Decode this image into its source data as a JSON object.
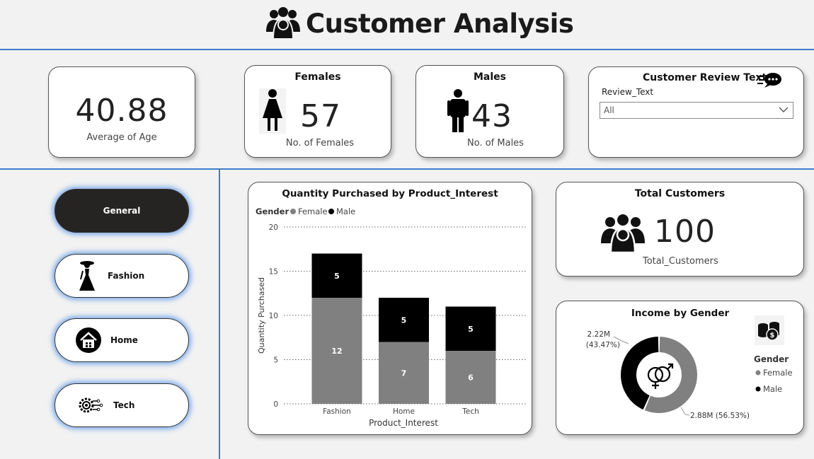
{
  "header": {
    "title": "Customer Analysis",
    "icon": "group-people-icon"
  },
  "kpis": {
    "average_age": {
      "value": "40.88",
      "label": "Average of Age"
    },
    "females": {
      "title": "Females",
      "value": "57",
      "label": "No. of Females",
      "icon": "female-person-icon"
    },
    "males": {
      "title": "Males",
      "value": "43",
      "label": "No. of Males",
      "icon": "male-person-icon"
    },
    "total_customers": {
      "title": "Total Customers",
      "value": "100",
      "label": "Total_Customers",
      "icon": "group-people-icon"
    }
  },
  "review_filter": {
    "title": "Customer Review Text",
    "field_label": "Review_Text",
    "selected": "All",
    "icon": "speech-bubble-icon"
  },
  "nav": {
    "items": [
      {
        "label": "General",
        "icon": "",
        "active": true
      },
      {
        "label": "Fashion",
        "icon": "fashion-woman-icon",
        "active": false
      },
      {
        "label": "Home",
        "icon": "house-icon",
        "active": false
      },
      {
        "label": "Tech",
        "icon": "circuit-gear-icon",
        "active": false
      }
    ]
  },
  "colors": {
    "accent_line": "#3c7ec7",
    "female": "#808080",
    "male": "#000000",
    "nav_active": "#252423"
  },
  "chart_data": [
    {
      "type": "bar",
      "stacked": true,
      "title": "Quantity Purchased by Product_Interest",
      "legend_title": "Gender",
      "legend_position": "top-left",
      "xlabel": "Product_Interest",
      "ylabel": "Quantity Purchased",
      "categories": [
        "Fashion",
        "Home",
        "Tech"
      ],
      "ylim": [
        0,
        20
      ],
      "yticks": [
        "0",
        "5",
        "10",
        "15",
        "20"
      ],
      "grid": true,
      "series": [
        {
          "name": "Female",
          "values": [
            12,
            7,
            6
          ],
          "color": "#808080"
        },
        {
          "name": "Male",
          "values": [
            5,
            5,
            5
          ],
          "color": "#000000"
        }
      ]
    },
    {
      "type": "pie",
      "donut": true,
      "title": "Income by Gender",
      "legend_title": "Gender",
      "legend_position": "right",
      "slices": [
        {
          "name": "Female",
          "value": 2.88,
          "label": "2.88M (56.53%)",
          "color": "#808080"
        },
        {
          "name": "Male",
          "value": 2.22,
          "label": "2.22M",
          "percent_label": "(43.47%)",
          "color": "#000000"
        }
      ],
      "center_icon": "gender-symbol-icon",
      "corner_icon": "money-stack-icon"
    }
  ]
}
